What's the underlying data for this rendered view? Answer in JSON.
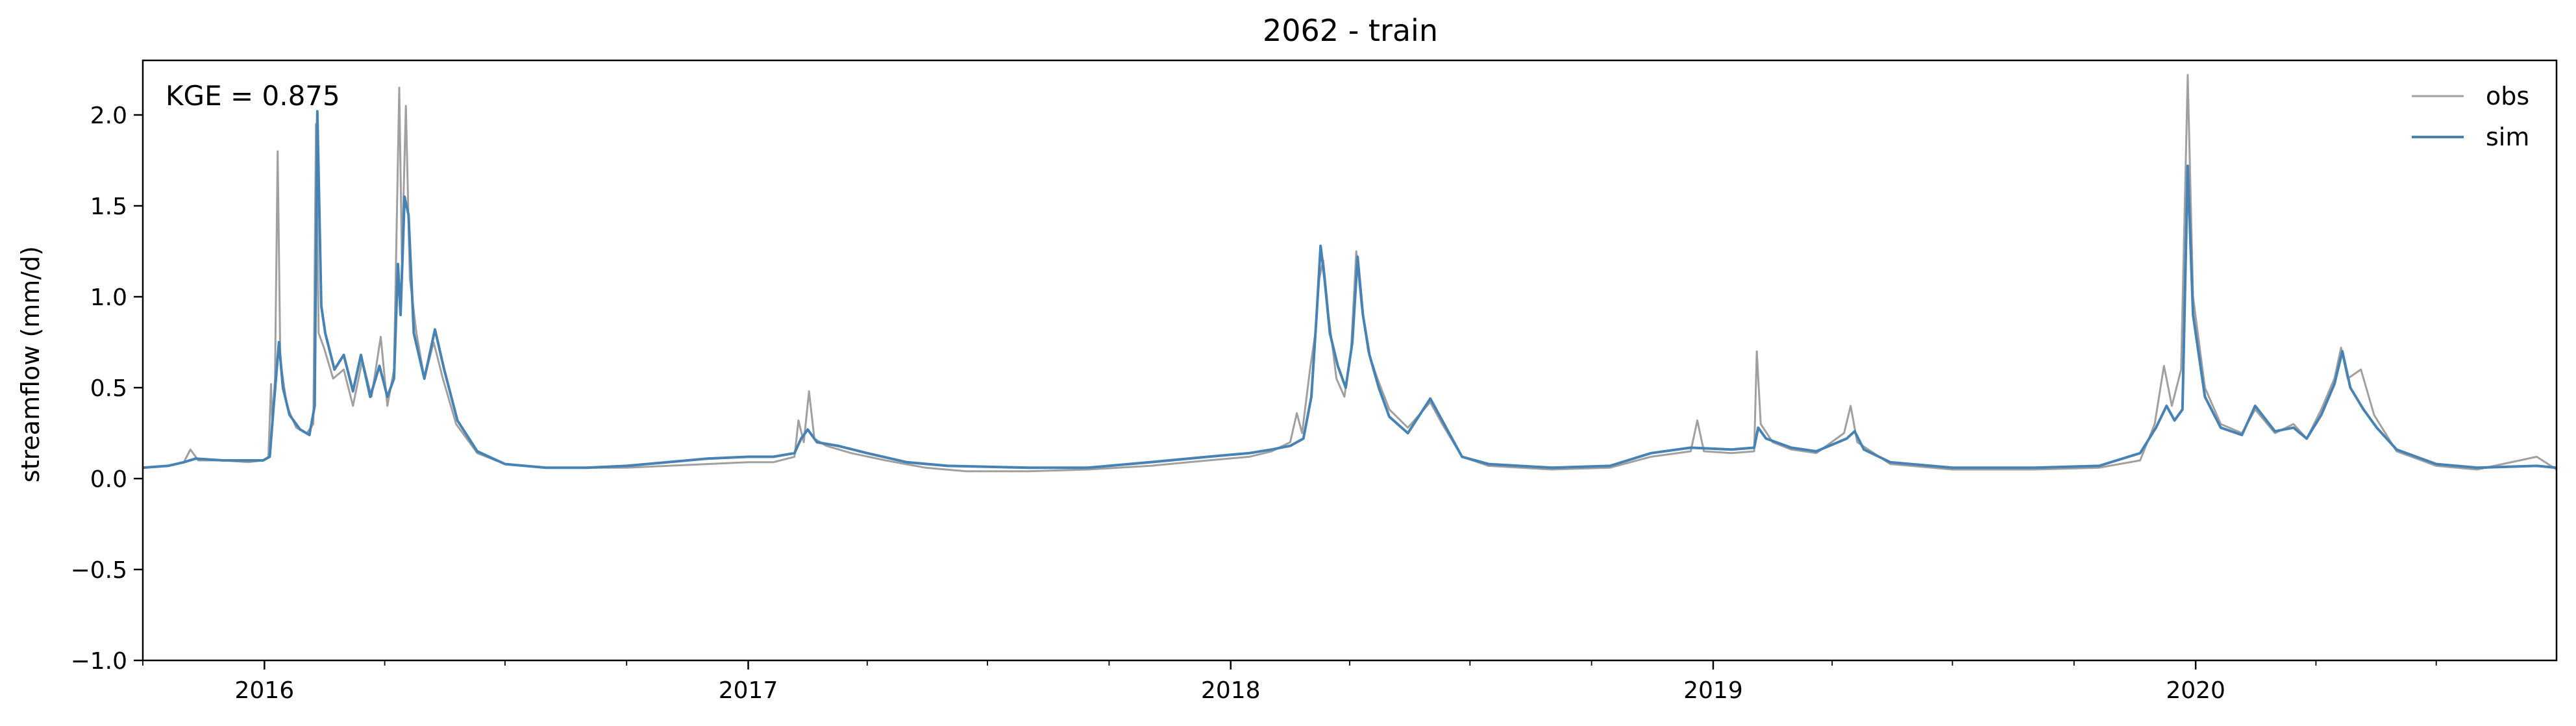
{
  "chart_data": {
    "type": "line",
    "title": "2062 - train",
    "xlabel": "",
    "ylabel": "streamflow (mm/d)",
    "annotation": "KGE = 0.875",
    "legend_position": "top-right",
    "grid": false,
    "xlim": [
      "2015-10-01",
      "2020-09-30"
    ],
    "ylim": [
      -1.0,
      2.3
    ],
    "y_ticks": [
      -1.0,
      -0.5,
      0.0,
      0.5,
      1.0,
      1.5,
      2.0
    ],
    "y_tick_labels": [
      "−1.0",
      "−0.5",
      "0.0",
      "0.5",
      "1.0",
      "1.5",
      "2.0"
    ],
    "x_ticks": [
      "2016-01-01",
      "2017-01-01",
      "2018-01-01",
      "2019-01-01",
      "2020-01-01"
    ],
    "x_tick_labels": [
      "2016",
      "2017",
      "2018",
      "2019",
      "2020"
    ],
    "series": [
      {
        "name": "obs",
        "color": "#a0a0a0",
        "points": [
          [
            "2015-10-01",
            0.06
          ],
          [
            "2015-10-20",
            0.07
          ],
          [
            "2015-11-01",
            0.09
          ],
          [
            "2015-11-06",
            0.16
          ],
          [
            "2015-11-12",
            0.1
          ],
          [
            "2015-12-01",
            0.1
          ],
          [
            "2015-12-20",
            0.09
          ],
          [
            "2015-12-31",
            0.1
          ],
          [
            "2016-01-04",
            0.12
          ],
          [
            "2016-01-06",
            0.52
          ],
          [
            "2016-01-07",
            0.3
          ],
          [
            "2016-01-09",
            0.55
          ],
          [
            "2016-01-11",
            1.8
          ],
          [
            "2016-01-13",
            0.65
          ],
          [
            "2016-01-18",
            0.4
          ],
          [
            "2016-01-25",
            0.28
          ],
          [
            "2016-02-02",
            0.25
          ],
          [
            "2016-02-07",
            0.3
          ],
          [
            "2016-02-09",
            1.95
          ],
          [
            "2016-02-11",
            0.8
          ],
          [
            "2016-02-15",
            0.72
          ],
          [
            "2016-02-22",
            0.55
          ],
          [
            "2016-03-01",
            0.6
          ],
          [
            "2016-03-08",
            0.4
          ],
          [
            "2016-03-15",
            0.65
          ],
          [
            "2016-03-22",
            0.45
          ],
          [
            "2016-03-29",
            0.78
          ],
          [
            "2016-04-03",
            0.4
          ],
          [
            "2016-04-08",
            0.6
          ],
          [
            "2016-04-12",
            2.15
          ],
          [
            "2016-04-14",
            1.2
          ],
          [
            "2016-04-17",
            2.05
          ],
          [
            "2016-04-20",
            1.1
          ],
          [
            "2016-04-25",
            0.8
          ],
          [
            "2016-05-01",
            0.55
          ],
          [
            "2016-05-08",
            0.75
          ],
          [
            "2016-05-15",
            0.55
          ],
          [
            "2016-05-25",
            0.3
          ],
          [
            "2016-06-10",
            0.14
          ],
          [
            "2016-07-01",
            0.08
          ],
          [
            "2016-08-01",
            0.06
          ],
          [
            "2016-09-01",
            0.06
          ],
          [
            "2016-10-01",
            0.06
          ],
          [
            "2016-11-01",
            0.07
          ],
          [
            "2016-12-01",
            0.08
          ],
          [
            "2017-01-01",
            0.09
          ],
          [
            "2017-01-20",
            0.09
          ],
          [
            "2017-02-05",
            0.12
          ],
          [
            "2017-02-08",
            0.32
          ],
          [
            "2017-02-12",
            0.2
          ],
          [
            "2017-02-16",
            0.48
          ],
          [
            "2017-02-20",
            0.22
          ],
          [
            "2017-03-01",
            0.18
          ],
          [
            "2017-03-20",
            0.14
          ],
          [
            "2017-04-15",
            0.1
          ],
          [
            "2017-05-15",
            0.06
          ],
          [
            "2017-06-15",
            0.04
          ],
          [
            "2017-08-01",
            0.04
          ],
          [
            "2017-09-15",
            0.05
          ],
          [
            "2017-11-01",
            0.07
          ],
          [
            "2017-12-15",
            0.1
          ],
          [
            "2018-01-15",
            0.12
          ],
          [
            "2018-02-01",
            0.15
          ],
          [
            "2018-02-15",
            0.2
          ],
          [
            "2018-02-20",
            0.36
          ],
          [
            "2018-02-24",
            0.25
          ],
          [
            "2018-03-02",
            0.6
          ],
          [
            "2018-03-06",
            0.8
          ],
          [
            "2018-03-09",
            1.1
          ],
          [
            "2018-03-12",
            1.2
          ],
          [
            "2018-03-16",
            0.9
          ],
          [
            "2018-03-22",
            0.55
          ],
          [
            "2018-03-28",
            0.45
          ],
          [
            "2018-04-02",
            0.7
          ],
          [
            "2018-04-06",
            1.25
          ],
          [
            "2018-04-10",
            0.95
          ],
          [
            "2018-04-15",
            0.7
          ],
          [
            "2018-04-22",
            0.55
          ],
          [
            "2018-05-01",
            0.38
          ],
          [
            "2018-05-15",
            0.28
          ],
          [
            "2018-06-01",
            0.42
          ],
          [
            "2018-06-10",
            0.3
          ],
          [
            "2018-06-25",
            0.12
          ],
          [
            "2018-07-15",
            0.07
          ],
          [
            "2018-09-01",
            0.05
          ],
          [
            "2018-10-15",
            0.06
          ],
          [
            "2018-11-15",
            0.12
          ],
          [
            "2018-12-15",
            0.15
          ],
          [
            "2018-12-20",
            0.32
          ],
          [
            "2018-12-25",
            0.15
          ],
          [
            "2019-01-15",
            0.14
          ],
          [
            "2019-02-01",
            0.15
          ],
          [
            "2019-02-03",
            0.7
          ],
          [
            "2019-02-06",
            0.3
          ],
          [
            "2019-02-15",
            0.2
          ],
          [
            "2019-03-01",
            0.16
          ],
          [
            "2019-03-20",
            0.14
          ],
          [
            "2019-04-10",
            0.25
          ],
          [
            "2019-04-15",
            0.4
          ],
          [
            "2019-04-20",
            0.2
          ],
          [
            "2019-05-15",
            0.08
          ],
          [
            "2019-07-01",
            0.05
          ],
          [
            "2019-09-01",
            0.05
          ],
          [
            "2019-10-20",
            0.06
          ],
          [
            "2019-11-20",
            0.1
          ],
          [
            "2019-12-01",
            0.3
          ],
          [
            "2019-12-08",
            0.62
          ],
          [
            "2019-12-14",
            0.4
          ],
          [
            "2019-12-21",
            0.6
          ],
          [
            "2019-12-26",
            2.22
          ],
          [
            "2019-12-30",
            1.0
          ],
          [
            "2020-01-08",
            0.5
          ],
          [
            "2020-01-20",
            0.3
          ],
          [
            "2020-02-05",
            0.25
          ],
          [
            "2020-02-15",
            0.38
          ],
          [
            "2020-03-01",
            0.25
          ],
          [
            "2020-03-15",
            0.3
          ],
          [
            "2020-03-25",
            0.22
          ],
          [
            "2020-04-05",
            0.38
          ],
          [
            "2020-04-15",
            0.55
          ],
          [
            "2020-04-20",
            0.72
          ],
          [
            "2020-04-25",
            0.55
          ],
          [
            "2020-05-05",
            0.6
          ],
          [
            "2020-05-15",
            0.35
          ],
          [
            "2020-06-01",
            0.15
          ],
          [
            "2020-07-01",
            0.07
          ],
          [
            "2020-08-01",
            0.05
          ],
          [
            "2020-09-15",
            0.12
          ],
          [
            "2020-09-30",
            0.05
          ]
        ]
      },
      {
        "name": "sim",
        "color": "#4682b4",
        "points": [
          [
            "2015-10-01",
            0.06
          ],
          [
            "2015-10-20",
            0.07
          ],
          [
            "2015-11-01",
            0.09
          ],
          [
            "2015-11-10",
            0.11
          ],
          [
            "2015-12-01",
            0.1
          ],
          [
            "2015-12-31",
            0.1
          ],
          [
            "2016-01-05",
            0.12
          ],
          [
            "2016-01-08",
            0.4
          ],
          [
            "2016-01-12",
            0.75
          ],
          [
            "2016-01-15",
            0.5
          ],
          [
            "2016-01-20",
            0.35
          ],
          [
            "2016-01-28",
            0.27
          ],
          [
            "2016-02-04",
            0.24
          ],
          [
            "2016-02-08",
            0.4
          ],
          [
            "2016-02-10",
            2.02
          ],
          [
            "2016-02-13",
            0.95
          ],
          [
            "2016-02-16",
            0.8
          ],
          [
            "2016-02-23",
            0.6
          ],
          [
            "2016-03-01",
            0.68
          ],
          [
            "2016-03-08",
            0.48
          ],
          [
            "2016-03-14",
            0.68
          ],
          [
            "2016-03-21",
            0.45
          ],
          [
            "2016-03-28",
            0.62
          ],
          [
            "2016-04-03",
            0.45
          ],
          [
            "2016-04-08",
            0.55
          ],
          [
            "2016-04-11",
            1.18
          ],
          [
            "2016-04-13",
            0.9
          ],
          [
            "2016-04-16",
            1.55
          ],
          [
            "2016-04-19",
            1.45
          ],
          [
            "2016-04-23",
            0.8
          ],
          [
            "2016-05-01",
            0.55
          ],
          [
            "2016-05-09",
            0.82
          ],
          [
            "2016-05-16",
            0.6
          ],
          [
            "2016-05-26",
            0.32
          ],
          [
            "2016-06-10",
            0.15
          ],
          [
            "2016-07-01",
            0.08
          ],
          [
            "2016-08-01",
            0.06
          ],
          [
            "2016-09-01",
            0.06
          ],
          [
            "2016-10-01",
            0.07
          ],
          [
            "2016-11-01",
            0.09
          ],
          [
            "2016-12-01",
            0.11
          ],
          [
            "2017-01-01",
            0.12
          ],
          [
            "2017-01-20",
            0.12
          ],
          [
            "2017-02-05",
            0.14
          ],
          [
            "2017-02-10",
            0.22
          ],
          [
            "2017-02-15",
            0.27
          ],
          [
            "2017-02-22",
            0.2
          ],
          [
            "2017-03-10",
            0.18
          ],
          [
            "2017-04-01",
            0.14
          ],
          [
            "2017-05-01",
            0.09
          ],
          [
            "2017-06-01",
            0.07
          ],
          [
            "2017-08-01",
            0.06
          ],
          [
            "2017-09-15",
            0.06
          ],
          [
            "2017-11-01",
            0.09
          ],
          [
            "2017-12-15",
            0.12
          ],
          [
            "2018-01-15",
            0.14
          ],
          [
            "2018-02-01",
            0.16
          ],
          [
            "2018-02-15",
            0.18
          ],
          [
            "2018-02-25",
            0.22
          ],
          [
            "2018-03-03",
            0.45
          ],
          [
            "2018-03-07",
            0.9
          ],
          [
            "2018-03-10",
            1.28
          ],
          [
            "2018-03-13",
            1.1
          ],
          [
            "2018-03-17",
            0.8
          ],
          [
            "2018-03-23",
            0.62
          ],
          [
            "2018-03-29",
            0.5
          ],
          [
            "2018-04-03",
            0.75
          ],
          [
            "2018-04-07",
            1.22
          ],
          [
            "2018-04-11",
            0.9
          ],
          [
            "2018-04-16",
            0.68
          ],
          [
            "2018-04-23",
            0.5
          ],
          [
            "2018-05-01",
            0.34
          ],
          [
            "2018-05-15",
            0.25
          ],
          [
            "2018-06-01",
            0.44
          ],
          [
            "2018-06-10",
            0.32
          ],
          [
            "2018-06-25",
            0.12
          ],
          [
            "2018-07-15",
            0.08
          ],
          [
            "2018-09-01",
            0.06
          ],
          [
            "2018-10-15",
            0.07
          ],
          [
            "2018-11-15",
            0.14
          ],
          [
            "2018-12-15",
            0.17
          ],
          [
            "2019-01-15",
            0.16
          ],
          [
            "2019-02-01",
            0.17
          ],
          [
            "2019-02-04",
            0.28
          ],
          [
            "2019-02-10",
            0.22
          ],
          [
            "2019-03-01",
            0.17
          ],
          [
            "2019-03-20",
            0.15
          ],
          [
            "2019-04-12",
            0.22
          ],
          [
            "2019-04-18",
            0.26
          ],
          [
            "2019-04-25",
            0.16
          ],
          [
            "2019-05-15",
            0.09
          ],
          [
            "2019-07-01",
            0.06
          ],
          [
            "2019-09-01",
            0.06
          ],
          [
            "2019-10-20",
            0.07
          ],
          [
            "2019-11-20",
            0.14
          ],
          [
            "2019-12-02",
            0.28
          ],
          [
            "2019-12-10",
            0.4
          ],
          [
            "2019-12-16",
            0.32
          ],
          [
            "2019-12-22",
            0.38
          ],
          [
            "2019-12-26",
            1.72
          ],
          [
            "2019-12-30",
            0.9
          ],
          [
            "2020-01-08",
            0.45
          ],
          [
            "2020-01-20",
            0.28
          ],
          [
            "2020-02-05",
            0.24
          ],
          [
            "2020-02-15",
            0.4
          ],
          [
            "2020-03-01",
            0.26
          ],
          [
            "2020-03-15",
            0.28
          ],
          [
            "2020-03-25",
            0.22
          ],
          [
            "2020-04-05",
            0.35
          ],
          [
            "2020-04-15",
            0.52
          ],
          [
            "2020-04-21",
            0.7
          ],
          [
            "2020-04-27",
            0.5
          ],
          [
            "2020-05-07",
            0.38
          ],
          [
            "2020-05-17",
            0.28
          ],
          [
            "2020-06-01",
            0.16
          ],
          [
            "2020-07-01",
            0.08
          ],
          [
            "2020-08-01",
            0.06
          ],
          [
            "2020-09-15",
            0.07
          ],
          [
            "2020-09-30",
            0.06
          ]
        ]
      }
    ]
  }
}
